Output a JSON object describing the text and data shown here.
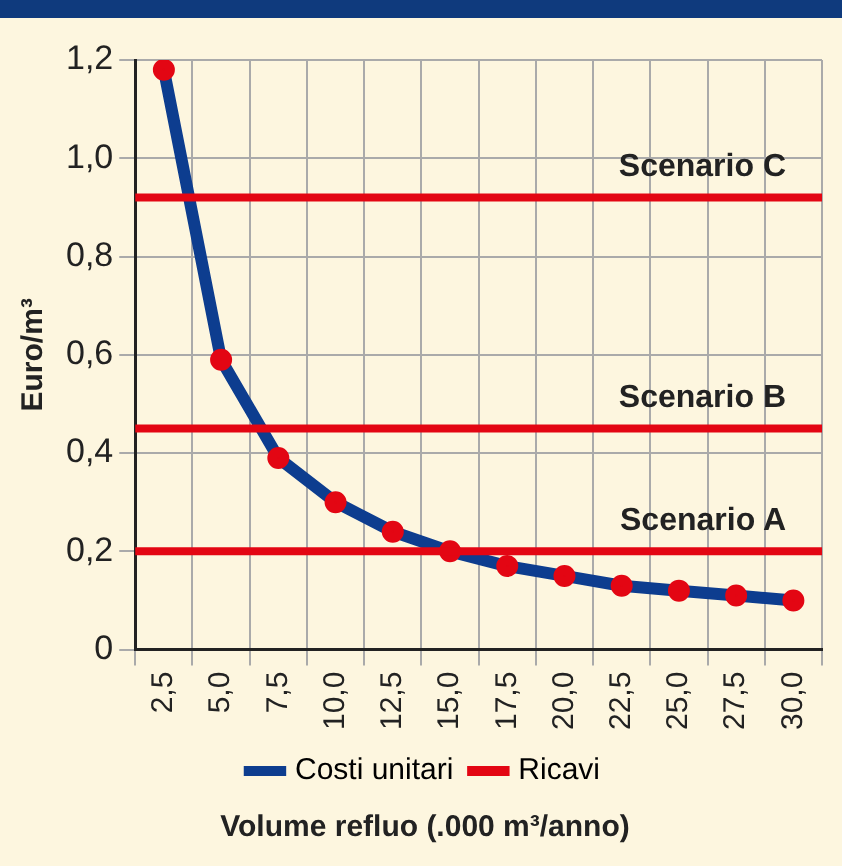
{
  "chart_data": {
    "type": "line",
    "xlabel": "Volume refluo (.000 m³/anno)",
    "ylabel": "Euro/m³",
    "categories": [
      "2,5",
      "5,0",
      "7,5",
      "10,0",
      "12,5",
      "15,0",
      "17,5",
      "20,0",
      "22,5",
      "25,0",
      "27,5",
      "30,0"
    ],
    "series": [
      {
        "name": "Costi unitari",
        "color": "#0d3d8f",
        "colors": [
          "#e30613",
          "#e30613",
          "#e30613",
          "#e30613",
          "#e30613",
          "#e30613",
          "#e30613",
          "#e30613",
          "#e30613",
          "#e30613",
          "#e30613",
          "#e30613"
        ],
        "values": [
          1.18,
          0.59,
          0.39,
          0.3,
          0.24,
          0.2,
          0.17,
          0.15,
          0.13,
          0.12,
          0.11,
          0.1
        ]
      },
      {
        "name": "Ricavi",
        "color": "#e30613",
        "values": [
          null,
          null,
          null,
          null,
          null,
          null,
          null,
          null,
          null,
          null,
          null,
          null
        ]
      }
    ],
    "ylim": [
      0,
      1.2
    ],
    "yticks": [
      0,
      {
        "value": 0.2,
        "label": "0,2"
      },
      {
        "value": 0.4,
        "label": "0,4"
      },
      {
        "value": 0.6,
        "label": "0,6"
      },
      {
        "value": 0.8,
        "label": "0,8"
      },
      {
        "value": 1.0,
        "label": "1,0"
      },
      {
        "value": 1.2,
        "label": "1,2"
      }
    ],
    "ref_lines": [
      {
        "axis": "y",
        "value": 0.92,
        "label": "Scenario C",
        "color": "#e30613"
      },
      {
        "axis": "y",
        "value": 0.45,
        "label": "Scenario B",
        "color": "#e30613"
      },
      {
        "axis": "y",
        "value": 0.2,
        "label": "Scenario A",
        "color": "#e30613"
      }
    ],
    "grid": true,
    "legend": "bottom",
    "marker": "circle",
    "line_style": "solid"
  }
}
